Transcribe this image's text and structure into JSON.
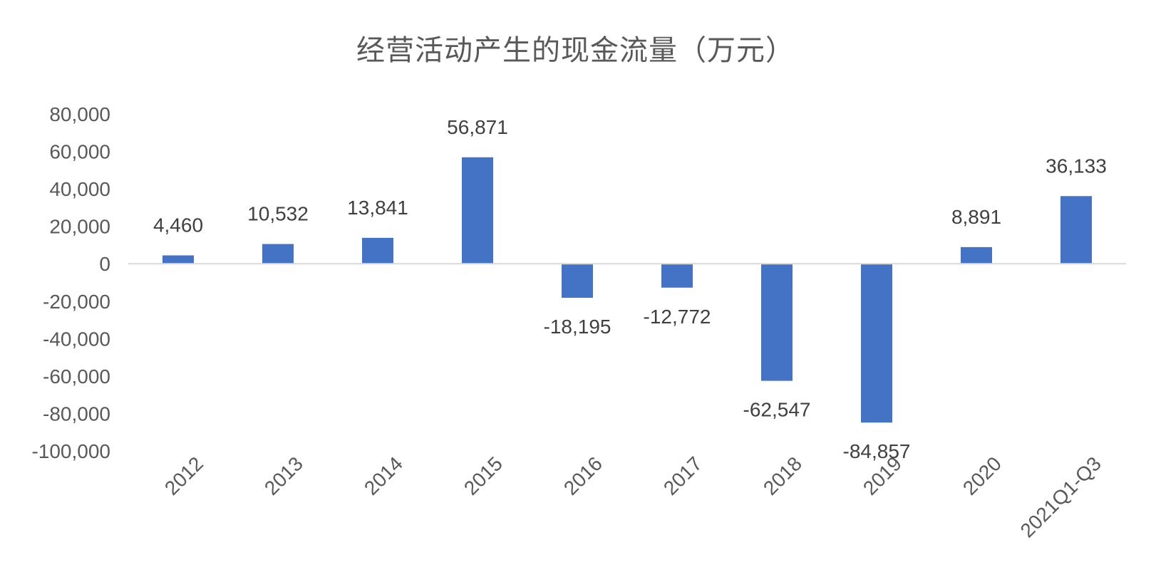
{
  "chart_data": {
    "type": "bar",
    "title": "经营活动产生的现金流量（万元）",
    "xlabel": "",
    "ylabel": "",
    "categories": [
      "2012",
      "2013",
      "2014",
      "2015",
      "2016",
      "2017",
      "2018",
      "2019",
      "2020",
      "2021Q1-Q3"
    ],
    "values": [
      4460,
      10532,
      13841,
      56871,
      -18195,
      -12772,
      -62547,
      -84857,
      8891,
      36133
    ],
    "value_labels": [
      "4,460",
      "10,532",
      "13,841",
      "56,871",
      "-18,195",
      "-12,772",
      "-62,547",
      "-84,857",
      "8,891",
      "36,133"
    ],
    "ylim": [
      -100000,
      80000
    ],
    "yticks": [
      80000,
      60000,
      40000,
      20000,
      0,
      -20000,
      -40000,
      -60000,
      -80000,
      -100000
    ],
    "ytick_labels": [
      "80,000",
      "60,000",
      "40,000",
      "20,000",
      "0",
      "-20,000",
      "-40,000",
      "-60,000",
      "-80,000",
      "-100,000"
    ],
    "grid": false,
    "legend": "none",
    "bar_color": "#4472C4",
    "axis_color": "#D9D9D9"
  }
}
